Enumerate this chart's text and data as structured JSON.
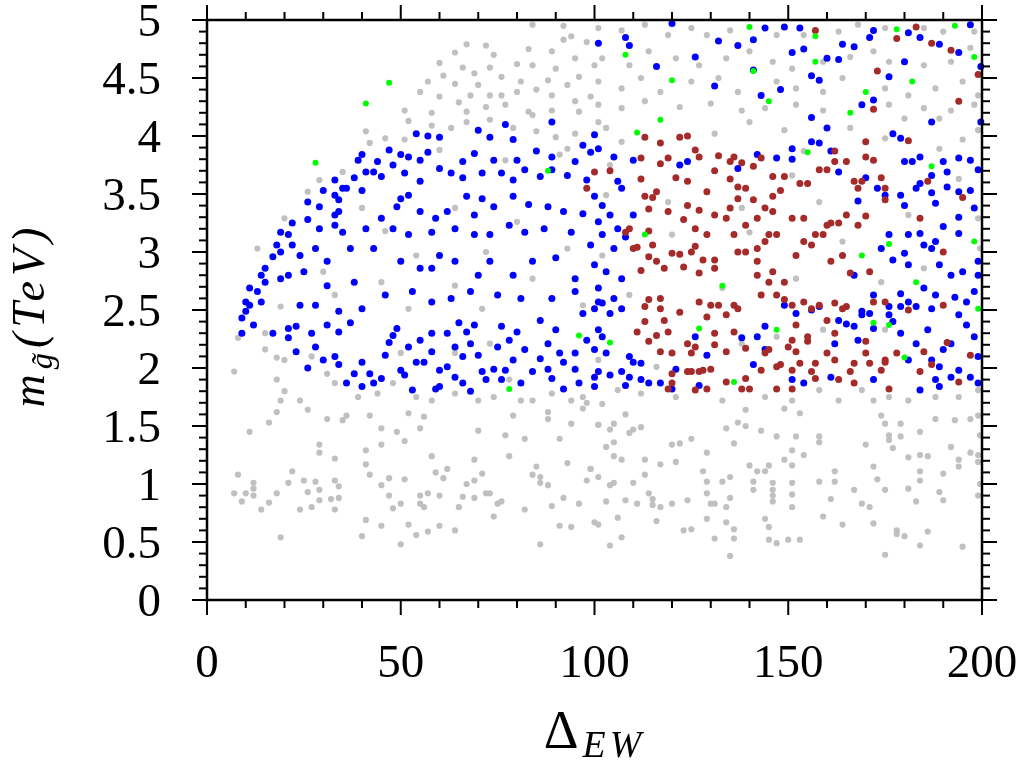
{
  "chart_data": {
    "type": "scatter",
    "xlabel": "Δ$_{EW}$",
    "ylabel": "m$_{g̃}$(TeV)",
    "marker": "circle",
    "xlim": [
      0,
      200
    ],
    "ylim": [
      0,
      5
    ],
    "xticks": [
      0,
      {
        "value": 10,
        "label": null
      },
      {
        "value": 20,
        "label": null
      },
      {
        "value": 30,
        "label": null
      },
      {
        "value": 40,
        "label": null
      },
      50,
      {
        "value": 60,
        "label": null
      },
      {
        "value": 70,
        "label": null
      },
      {
        "value": 80,
        "label": null
      },
      {
        "value": 90,
        "label": null
      },
      100,
      {
        "value": 110,
        "label": null
      },
      {
        "value": 120,
        "label": null
      },
      {
        "value": 130,
        "label": null
      },
      {
        "value": 140,
        "label": null
      },
      150,
      {
        "value": 160,
        "label": null
      },
      {
        "value": 170,
        "label": null
      },
      {
        "value": 180,
        "label": null
      },
      {
        "value": 190,
        "label": null
      },
      200
    ],
    "yticks": [
      0,
      {
        "value": 0.1,
        "label": null
      },
      {
        "value": 0.2,
        "label": null
      },
      {
        "value": 0.3,
        "label": null
      },
      {
        "value": 0.4,
        "label": null
      },
      0.5,
      {
        "value": 0.6,
        "label": null
      },
      {
        "value": 0.7,
        "label": null
      },
      {
        "value": 0.8,
        "label": null
      },
      {
        "value": 0.9,
        "label": null
      },
      1,
      {
        "value": 1.1,
        "label": null
      },
      {
        "value": 1.2,
        "label": null
      },
      {
        "value": 1.3,
        "label": null
      },
      {
        "value": 1.4,
        "label": null
      },
      1.5,
      {
        "value": 1.6,
        "label": null
      },
      {
        "value": 1.7,
        "label": null
      },
      {
        "value": 1.8,
        "label": null
      },
      {
        "value": 1.9,
        "label": null
      },
      2,
      {
        "value": 2.1,
        "label": null
      },
      {
        "value": 2.2,
        "label": null
      },
      {
        "value": 2.3,
        "label": null
      },
      {
        "value": 2.4,
        "label": null
      },
      2.5,
      {
        "value": 2.6,
        "label": null
      },
      {
        "value": 2.7,
        "label": null
      },
      {
        "value": 2.8,
        "label": null
      },
      {
        "value": 2.9,
        "label": null
      },
      3,
      {
        "value": 3.1,
        "label": null
      },
      {
        "value": 3.2,
        "label": null
      },
      {
        "value": 3.3,
        "label": null
      },
      {
        "value": 3.4,
        "label": null
      },
      3.5,
      {
        "value": 3.6,
        "label": null
      },
      {
        "value": 3.7,
        "label": null
      },
      {
        "value": 3.8,
        "label": null
      },
      {
        "value": 3.9,
        "label": null
      },
      4,
      {
        "value": 4.1,
        "label": null
      },
      {
        "value": 4.2,
        "label": null
      },
      {
        "value": 4.3,
        "label": null
      },
      {
        "value": 4.4,
        "label": null
      },
      4.5,
      {
        "value": 4.6,
        "label": null
      },
      {
        "value": 4.7,
        "label": null
      },
      {
        "value": 4.8,
        "label": null
      },
      {
        "value": 4.9,
        "label": null
      },
      5
    ],
    "series": [
      {
        "color": "#c0c0c0",
        "x": [
          84,
          92,
          94,
          92,
          98,
          67,
          72,
          64,
          74,
          83,
          89,
          95,
          100,
          60,
          66,
          73,
          80,
          84,
          90,
          96,
          61,
          69,
          76,
          81,
          88,
          93,
          57,
          64,
          70,
          73,
          80,
          85,
          89,
          95,
          99,
          55,
          60,
          65,
          68,
          76,
          51,
          58,
          67,
          72,
          77,
          83,
          89,
          96,
          52,
          58,
          67,
          73,
          84,
          41,
          42,
          46,
          51,
          63,
          79,
          85,
          90,
          95,
          93,
          35,
          29,
          26,
          20,
          13,
          60,
          77,
          91,
          101,
          30,
          46,
          54,
          72,
          93,
          45,
          64,
          84,
          33,
          52,
          71,
          97,
          80,
          64,
          40,
          101,
          107,
          113,
          119,
          125,
          129,
          135,
          147,
          154,
          163,
          168,
          175,
          185,
          190,
          198,
          102,
          109,
          114,
          121,
          127,
          134,
          140,
          146,
          151,
          159,
          166,
          172,
          176,
          185,
          192,
          197,
          101,
          107,
          112,
          117,
          125,
          132,
          137,
          147,
          152,
          159,
          164,
          175,
          181,
          188,
          195,
          199,
          101,
          107,
          113,
          122,
          130,
          138,
          144,
          152,
          159,
          176,
          185,
          192,
          198,
          140,
          180,
          189,
          103,
          131,
          149,
          166,
          175,
          195,
          199,
          107,
          154,
          189,
          104,
          151,
          194,
          103,
          119,
          138,
          158,
          181,
          199,
          102,
          120,
          140,
          164,
          185,
          199.5,
          109,
          133,
          152,
          174,
          101,
          106,
          112,
          116,
          121,
          133,
          138,
          144,
          151,
          158,
          163,
          169,
          176,
          181,
          188,
          194,
          199,
          147,
          175,
          159,
          15,
          19,
          31,
          33,
          39,
          44,
          48,
          54,
          58,
          64,
          70,
          74,
          81,
          84,
          89,
          94,
          97,
          20,
          27,
          50,
          64,
          78,
          73,
          7,
          8,
          15,
          18,
          18,
          20,
          19,
          24,
          26,
          18,
          16,
          11,
          29,
          29,
          31,
          33,
          36,
          35,
          41,
          41,
          42,
          42,
          45,
          45,
          45,
          47,
          47,
          49,
          51,
          51,
          50,
          48,
          52,
          55,
          56,
          52,
          54,
          55,
          55,
          56,
          57,
          57,
          58,
          59,
          60,
          60,
          61,
          62,
          64,
          65,
          66,
          67,
          69,
          69,
          69,
          70,
          71,
          72,
          73,
          74,
          75,
          76,
          77,
          78,
          79,
          82,
          82,
          84,
          85,
          86,
          86,
          86,
          88,
          88,
          88,
          89,
          91,
          91,
          92,
          93,
          94,
          94,
          96,
          98,
          99,
          100,
          101,
          97,
          98,
          7,
          8,
          9,
          10,
          12,
          12,
          12,
          14,
          16,
          18,
          19,
          21,
          22,
          24,
          25,
          26,
          27,
          28,
          29,
          29,
          32,
          33,
          33,
          34,
          34,
          41,
          40,
          45,
          50,
          102,
          108,
          101,
          105,
          104,
          110,
          112,
          109,
          103,
          105,
          105,
          107,
          101,
          104,
          105,
          99,
          103,
          108,
          111,
          115,
          115,
          117,
          101,
          106,
          107,
          104,
          110,
          113,
          113,
          114,
          116,
          117,
          120,
          120,
          121,
          122,
          124,
          123,
          125,
          125,
          128,
          129,
          129,
          129,
          129,
          130,
          131,
          131,
          133,
          134,
          134,
          134,
          135,
          135,
          135,
          136,
          136,
          136,
          137,
          139,
          139,
          140,
          141,
          141,
          142,
          143,
          144,
          145,
          144,
          145,
          145,
          146,
          146,
          146,
          146,
          147,
          147,
          149,
          149,
          150,
          151,
          151,
          151,
          151,
          151,
          152,
          153,
          153,
          154,
          158,
          158,
          158,
          159,
          161,
          162,
          162,
          164,
          167,
          169,
          170,
          171,
          172,
          172,
          172,
          173,
          174,
          175,
          175,
          175,
          176,
          176,
          177,
          178,
          178,
          179,
          180,
          179,
          181,
          181,
          184,
          184,
          183,
          184,
          184,
          184,
          186,
          186,
          188,
          189,
          190,
          190,
          192,
          193,
          194,
          194,
          195,
          197,
          197,
          199,
          199,
          199,
          199.5,
          199.5,
          199
        ],
        "values": [
          4.96,
          4.95,
          4.86,
          4.83,
          4.81,
          4.79,
          4.78,
          4.72,
          4.7,
          4.75,
          4.73,
          4.67,
          4.61,
          4.63,
          4.59,
          4.59,
          4.62,
          4.61,
          4.58,
          4.51,
          4.52,
          4.54,
          4.51,
          4.47,
          4.48,
          4.44,
          4.47,
          4.45,
          4.44,
          4.35,
          4.38,
          4.4,
          4.35,
          4.3,
          4.34,
          4.38,
          4.34,
          4.29,
          4.35,
          4.35,
          4.22,
          4.2,
          4.21,
          4.25,
          4.27,
          4.21,
          4.22,
          4.21,
          4.13,
          4.09,
          4.12,
          4.14,
          4.18,
          4.04,
          3.94,
          3.98,
          3.97,
          4.07,
          4.07,
          4.04,
          3.99,
          4.02,
          3.89,
          3.69,
          3.62,
          3.52,
          3.29,
          3.03,
          3.88,
          3.79,
          3.84,
          4.12,
          2.83,
          3.18,
          2.97,
          3.0,
          3.03,
          2.74,
          2.71,
          2.77,
          2.63,
          2.51,
          2.51,
          2.54,
          3.26,
          3.38,
          3.38,
          4.93,
          4.91,
          4.96,
          4.87,
          4.93,
          4.87,
          4.91,
          4.87,
          4.87,
          4.9,
          4.96,
          4.93,
          4.93,
          4.9,
          4.9,
          4.67,
          4.61,
          4.73,
          4.67,
          4.61,
          4.67,
          4.73,
          4.64,
          4.58,
          4.64,
          4.68,
          4.73,
          4.64,
          4.61,
          4.64,
          4.76,
          4.47,
          4.41,
          4.5,
          4.38,
          4.47,
          4.5,
          4.38,
          4.47,
          4.41,
          4.38,
          4.5,
          4.41,
          4.35,
          4.41,
          4.47,
          4.35,
          4.27,
          4.24,
          4.3,
          4.25,
          4.28,
          4.22,
          4.24,
          4.27,
          4.22,
          4.27,
          4.24,
          4.22,
          4.27,
          4.12,
          4.15,
          4.15,
          4.07,
          4.02,
          4.05,
          4.07,
          3.98,
          3.97,
          4.05,
          3.95,
          3.87,
          3.89,
          3.75,
          3.66,
          3.63,
          3.49,
          3.43,
          3.38,
          3.43,
          3.32,
          3.29,
          2.97,
          3.15,
          3.17,
          3.09,
          2.86,
          3.03,
          2.63,
          2.69,
          2.77,
          2.74,
          2.07,
          1.81,
          1.78,
          2.01,
          1.75,
          1.72,
          2.21,
          1.75,
          1.72,
          1.81,
          1.72,
          1.81,
          1.75,
          1.72,
          1.75,
          1.75,
          1.81,
          2.27,
          2.33,
          2.33,
          2.3,
          2.53,
          1.95,
          1.87,
          1.75,
          1.78,
          1.87,
          1.75,
          1.72,
          1.78,
          1.72,
          1.75,
          1.72,
          1.72,
          1.78,
          1.72,
          1.75,
          2.07,
          2.1,
          2.13,
          2.13,
          1.9,
          2.21,
          1.97,
          2.26,
          2.16,
          2.09,
          1.9,
          1.8,
          1.72,
          1.72,
          1.64,
          1.62,
          1.53,
          1.45,
          1.34,
          1.27,
          1.56,
          1.22,
          1.59,
          1.55,
          1.29,
          1.17,
          1.59,
          1.08,
          1.34,
          1.48,
          0.99,
          0.9,
          1.05,
          1.45,
          1.37,
          1.04,
          0.83,
          0.79,
          1.61,
          1.48,
          1.58,
          0.65,
          0.56,
          0.9,
          0.83,
          0.8,
          0.92,
          0.59,
          1.24,
          1.1,
          0.9,
          0.64,
          1.05,
          1.13,
          0.6,
          0.8,
          0.89,
          1.0,
          1.21,
          1.03,
          0.88,
          1.46,
          1.09,
          0.92,
          0.92,
          0.72,
          0.83,
          0.85,
          1.42,
          1.24,
          1.59,
          1.39,
          0.78,
          1.08,
          1.15,
          1.06,
          1.01,
          0.48,
          1.62,
          1.56,
          0.99,
          0.81,
          0.64,
          1.39,
          0.88,
          1.18,
          0.63,
          1.52,
          0.83,
          1.03,
          1.13,
          0.67,
          1.51,
          1.65,
          1.7,
          0.92,
          1.08,
          0.85,
          0.92,
          1.01,
          0.9,
          0.96,
          0.78,
          0.84,
          0.92,
          0.54,
          1.01,
          1.11,
          0.78,
          1.03,
          0.93,
          0.8,
          1.02,
          0.95,
          0.86,
          0.87,
          0.78,
          1.03,
          0.98,
          0.88,
          0.69,
          0.55,
          0.64,
          0.48,
          1.69,
          1.6,
          1.51,
          1.52,
          1.47,
          1.47,
          1.49,
          1.44,
          1.32,
          1.36,
          1.24,
          1.21,
          1.06,
          0.99,
          1.01,
          1.13,
          0.85,
          0.86,
          0.83,
          0.87,
          0.82,
          0.8,
          0.65,
          0.71,
          0.54,
          0.47,
          1.01,
          1.21,
          1.08,
          0.92,
          0.68,
          1.17,
          1.34,
          0.83,
          1.19,
          1.35,
          0.86,
          0.6,
          0.61,
          1.39,
          1.11,
          1.02,
          1.27,
          0.92,
          0.7,
          0.83,
          0.53,
          0.83,
          1.02,
          1.48,
          0.8,
          0.67,
          0.38,
          1.06,
          0.88,
          0.61,
          0.53,
          1.35,
          1.53,
          1.64,
          1.5,
          1.16,
          0.95,
          1.02,
          1.11,
          1.46,
          0.7,
          0.63,
          1.11,
          0.52,
          1.16,
          0.95,
          0.9,
          0.85,
          1.01,
          1.41,
          0.49,
          1.21,
          1.65,
          0.52,
          1.01,
          0.91,
          0.8,
          1.16,
          1.29,
          1.41,
          0.52,
          1.61,
          1.25,
          1.36,
          1.41,
          1.02,
          0.72,
          0.87,
          1.02,
          1.11,
          0.65,
          0.95,
          0.83,
          1.34,
          0.8,
          1.72,
          1.15,
          0.66,
          1.04,
          1.59,
          1.52,
          0.95,
          0.39,
          1.42,
          1.38,
          1.31,
          0.6,
          0.57,
          1.52,
          0.55,
          1.41,
          1.23,
          0.96,
          1.11,
          1.03,
          0.85,
          1.25,
          1.45,
          0.47,
          0.59,
          1.24,
          1.56,
          0.93,
          1.09,
          0.86,
          1.32,
          1.55,
          1.21,
          1.15,
          0.46,
          1.56,
          1.27,
          1.25,
          1.19,
          0.9,
          1.0,
          1.42,
          1.59
        ]
      },
      {
        "color": "#0000ff",
        "x": [
          77,
          89,
          101,
          54,
          57,
          60,
          70,
          79,
          73,
          97,
          101,
          99,
          39,
          40,
          44,
          47,
          50,
          52,
          57,
          55,
          66,
          69,
          74,
          80,
          85,
          89,
          95,
          89,
          93,
          98,
          33,
          35,
          38,
          41,
          43,
          45,
          48,
          51,
          55,
          60,
          63,
          66,
          71,
          76,
          79,
          82,
          86,
          26,
          30,
          33,
          36,
          40,
          29,
          34,
          34,
          33,
          50,
          52,
          49,
          55,
          59,
          62,
          67,
          69,
          71,
          74,
          79,
          83,
          88,
          92,
          97,
          22,
          26,
          29,
          33,
          35,
          19,
          21,
          18,
          19,
          22,
          24,
          28,
          31,
          17,
          15,
          14,
          11,
          13,
          15,
          19,
          21,
          25,
          10,
          14,
          10,
          41,
          45,
          48,
          52,
          58,
          60,
          64,
          69,
          73,
          78,
          82,
          87,
          94,
          99,
          37,
          43,
          50,
          55,
          58,
          64,
          70,
          73,
          79,
          84,
          90,
          95,
          38,
          46,
          53,
          58,
          63,
          68,
          75,
          81,
          89,
          95,
          101,
          31,
          28,
          24,
          34,
          40,
          9,
          9,
          11,
          12,
          17,
          21,
          21,
          23,
          23,
          26,
          27,
          28,
          30,
          31,
          33,
          34,
          34,
          36,
          37,
          38,
          40,
          40,
          42,
          43,
          45,
          46,
          47,
          48,
          49,
          50,
          51,
          52,
          53,
          54,
          55,
          56,
          58,
          58,
          59,
          60,
          60,
          62,
          62,
          64,
          64,
          65,
          66,
          66,
          67,
          68,
          68,
          69,
          70,
          71,
          72,
          74,
          75,
          76,
          76,
          77,
          78,
          79,
          80,
          81,
          82,
          84,
          86,
          86,
          88,
          88,
          89,
          90,
          91,
          92,
          92,
          95,
          95,
          96,
          97,
          98,
          100,
          100,
          108,
          109,
          116,
          120,
          126,
          131,
          132,
          137,
          141,
          144,
          148,
          149,
          151,
          153,
          154,
          156,
          158,
          160,
          163,
          164,
          167,
          172,
          171,
          176,
          180,
          181,
          184,
          189,
          194,
          197,
          199.7,
          199.7,
          169,
          172,
          156,
          160,
          141,
          143,
          187,
          100,
          105,
          110,
          100,
          102,
          106,
          107,
          101,
          104,
          106,
          102,
          105,
          108,
          110,
          100,
          103,
          107,
          101,
          105,
          100,
          122,
          124,
          137,
          147,
          151,
          156,
          158,
          163,
          168,
          170,
          173,
          177,
          179,
          180,
          182,
          184,
          187,
          190,
          191,
          194,
          197,
          199,
          191,
          194,
          197,
          184,
          183,
          179,
          175,
          180,
          188,
          198,
          194,
          187,
          194,
          190,
          188,
          184,
          181,
          176,
          174,
          177,
          180,
          181,
          185,
          187,
          189,
          192,
          195,
          199,
          199,
          198,
          196,
          193,
          188,
          185,
          181,
          179,
          176,
          172,
          169,
          167,
          161,
          151,
          142,
          102,
          104,
          101,
          102,
          100,
          103,
          101,
          104,
          107,
          107,
          109,
          110,
          112,
          112,
          109,
          108,
          114,
          117,
          120,
          121,
          127,
          126,
          129,
          138,
          141,
          142,
          144,
          144,
          149,
          151,
          152,
          154,
          156,
          158,
          161,
          162,
          163,
          165,
          167,
          168,
          169,
          171,
          172,
          172,
          176,
          177,
          179,
          179,
          181,
          183,
          184,
          186,
          187,
          188,
          189,
          189,
          190,
          192,
          194,
          194,
          196,
          197,
          198,
          199,
          199,
          187,
          183,
          192
        ],
        "values": [
          4.1,
          4.12,
          4.8,
          4.02,
          4.0,
          3.99,
          4.05,
          3.97,
          3.99,
          3.92,
          3.89,
          3.86,
          3.79,
          3.84,
          3.78,
          3.88,
          3.84,
          3.82,
          3.86,
          3.79,
          3.78,
          3.85,
          3.79,
          3.79,
          3.87,
          3.82,
          3.78,
          3.71,
          3.66,
          3.62,
          3.62,
          3.55,
          3.64,
          3.69,
          3.69,
          3.65,
          3.75,
          3.68,
          3.61,
          3.72,
          3.68,
          3.64,
          3.68,
          3.68,
          3.62,
          3.71,
          3.65,
          3.43,
          3.53,
          3.49,
          3.55,
          3.53,
          3.39,
          3.45,
          3.35,
          3.32,
          3.46,
          3.49,
          3.39,
          3.35,
          3.29,
          3.35,
          3.48,
          3.32,
          3.46,
          3.39,
          3.48,
          3.41,
          3.39,
          3.35,
          3.33,
          3.25,
          3.28,
          3.2,
          3.23,
          3.17,
          3.17,
          3.15,
          3.06,
          3.0,
          3.06,
          2.97,
          3.03,
          2.92,
          2.96,
          2.86,
          2.8,
          2.69,
          2.66,
          2.74,
          2.77,
          2.8,
          2.83,
          2.57,
          2.57,
          2.49,
          3.2,
          3.29,
          3.2,
          3.15,
          3.17,
          2.97,
          3.2,
          3.15,
          3.15,
          3.23,
          3.17,
          3.2,
          3.17,
          3.06,
          3.03,
          3.03,
          2.92,
          2.86,
          2.86,
          2.92,
          2.8,
          2.92,
          2.8,
          2.92,
          2.95,
          2.77,
          2.74,
          2.63,
          2.66,
          2.57,
          2.6,
          2.66,
          2.63,
          2.6,
          2.6,
          2.66,
          2.57,
          2.71,
          2.54,
          2.54,
          2.49,
          2.51,
          2.3,
          2.43,
          2.54,
          2.37,
          2.3,
          2.34,
          2.26,
          2.36,
          2.14,
          2.0,
          2.3,
          2.18,
          2.07,
          2.37,
          2.1,
          2.31,
          2.03,
          1.87,
          2.39,
          1.95,
          1.84,
          2.05,
          1.95,
          1.87,
          1.91,
          2.11,
          2.22,
          2.28,
          2.34,
          1.98,
          1.94,
          2.18,
          1.81,
          2.05,
          2.24,
          2.05,
          2.3,
          2.14,
          1.82,
          1.98,
          1.84,
          2.01,
          2.3,
          2.18,
          1.92,
          2.39,
          2.1,
          1.87,
          2.31,
          1.8,
          2.21,
          2.37,
          2.11,
          1.97,
          1.9,
          1.99,
          2.18,
          2.36,
          1.9,
          1.98,
          2.24,
          2.07,
          2.31,
          1.87,
          2.16,
          1.97,
          2.41,
          2.08,
          2.21,
          1.99,
          1.91,
          2.33,
          2.13,
          1.82,
          2.05,
          1.99,
          2.13,
          1.87,
          2.47,
          2.24,
          1.92,
          1.84,
          4.85,
          4.78,
          4.6,
          4.97,
          4.68,
          4.43,
          4.82,
          4.78,
          4.83,
          4.93,
          4.4,
          4.94,
          4.72,
          4.93,
          4.75,
          4.52,
          4.48,
          4.67,
          4.66,
          4.79,
          4.77,
          4.91,
          4.85,
          4.51,
          4.64,
          4.89,
          4.85,
          4.79,
          4.72,
          4.96,
          4.6,
          4.12,
          4.27,
          4.31,
          4.16,
          4.07,
          4.57,
          4.35,
          4.12,
          4.01,
          3.82,
          3.79,
          3.48,
          3.4,
          3.61,
          3.55,
          3.26,
          3.32,
          3.2,
          3.15,
          3.03,
          3.13,
          3.32,
          2.89,
          2.83,
          2.77,
          2.69,
          2.6,
          2.51,
          3.75,
          3.78,
          3.72,
          3.81,
          3.8,
          3.95,
          3.94,
          3.69,
          3.44,
          3.64,
          3.55,
          4.02,
          3.98,
          3.78,
          3.78,
          3.82,
          3.66,
          3.78,
          3.69,
          3.81,
          3.79,
          3.71,
          3.56,
          3.52,
          3.53,
          3.59,
          3.55,
          3.49,
          3.49,
          3.4,
          3.42,
          3.38,
          3.3,
          3.51,
          3.16,
          3.22,
          3.09,
          3.16,
          3.15,
          3.15,
          3.03,
          2.93,
          2.99,
          2.89,
          3.06,
          3.03,
          2.89,
          2.8,
          2.83,
          2.92,
          2.8,
          2.66,
          2.57,
          2.61,
          2.63,
          2.69,
          2.57,
          2.64,
          2.53,
          2.63,
          2.49,
          2.8,
          3.87,
          3.89,
          3.84,
          2.56,
          2.47,
          2.33,
          2.27,
          2.16,
          2.13,
          1.97,
          1.94,
          1.97,
          2.51,
          2.1,
          2.05,
          2.04,
          1.9,
          1.92,
          1.85,
          1.87,
          1.87,
          1.82,
          1.99,
          1.85,
          2.27,
          2.11,
          2.26,
          2.03,
          2.27,
          2.36,
          2.16,
          2.54,
          1.9,
          2.47,
          1.87,
          2.5,
          2.53,
          1.92,
          2.21,
          2.41,
          2.38,
          2.36,
          2.24,
          2.46,
          2.47,
          1.9,
          2.34,
          2.46,
          2.4,
          2.53,
          2.3,
          2.07,
          2.21,
          1.81,
          2.33,
          2.07,
          1.9,
          2.01,
          1.84,
          2.16,
          2.21,
          2.46,
          1.98,
          2.37,
          1.92,
          2.27,
          1.87,
          2.1,
          2.51,
          2.53,
          1.92
        ]
      },
      {
        "color": "#a52a2a",
        "x": [
          157,
          178,
          183,
          187,
          192,
          173,
          199,
          194,
          172,
          181,
          170,
          100,
          98,
          113,
          117,
          122,
          124,
          126,
          104,
          112,
          112,
          117,
          119,
          121,
          124,
          127,
          132,
          135,
          136,
          138,
          131,
          135,
          141,
          143,
          146,
          149,
          146,
          153,
          155,
          158,
          160,
          162,
          162,
          165,
          170,
          172,
          174,
          169,
          168,
          167,
          195,
          186,
          184,
          113,
          116,
          115,
          119,
          114,
          109,
          114,
          115,
          114,
          112,
          111,
          116,
          118,
          120,
          122,
          123,
          123,
          124,
          127,
          126,
          129,
          129,
          131,
          135,
          134,
          137,
          139,
          137,
          141,
          142,
          144,
          146,
          148,
          151,
          154,
          157,
          159,
          161,
          160,
          163,
          165,
          168,
          170,
          175,
          175,
          136,
          139,
          137,
          139,
          142,
          142,
          144,
          145,
          147,
          142,
          146,
          145,
          149,
          152,
          154,
          156,
          161,
          164,
          166,
          128,
          126,
          125,
          131,
          131,
          127,
          127,
          130,
          136,
          137,
          143,
          147,
          149,
          151,
          154,
          158,
          162,
          164,
          172,
          175,
          156,
          117,
          117,
          114,
          113,
          110,
          108,
          171,
          190,
          132,
          113,
          111,
          118,
          122,
          119,
          116,
          114,
          117,
          120,
          124,
          126,
          125,
          125,
          124,
          127,
          120,
          120,
          119,
          126,
          129,
          129,
          131,
          131,
          128,
          130,
          134,
          136,
          134,
          134,
          138,
          139,
          139,
          140,
          143,
          144,
          145,
          147,
          147,
          148,
          151,
          151,
          152,
          153,
          155,
          155,
          157,
          157,
          156,
          152,
          160,
          162,
          160,
          162,
          163,
          167,
          167,
          166,
          170,
          170,
          171,
          174,
          175,
          176,
          175,
          178,
          181,
          190,
          191,
          194,
          197,
          185,
          184,
          187,
          165,
          151,
          150
        ],
        "values": [
          4.91,
          4.84,
          4.94,
          4.8,
          4.74,
          4.56,
          4.53,
          4.3,
          4.23,
          3.96,
          3.95,
          3.69,
          3.55,
          3.99,
          3.94,
          3.99,
          4.0,
          3.88,
          3.7,
          3.81,
          3.63,
          3.76,
          3.81,
          3.64,
          3.61,
          3.82,
          3.83,
          3.78,
          3.82,
          3.77,
          3.7,
          3.63,
          3.74,
          3.81,
          3.65,
          3.65,
          3.48,
          3.59,
          3.59,
          3.71,
          3.71,
          3.87,
          3.78,
          3.78,
          3.82,
          3.79,
          3.64,
          3.61,
          3.55,
          3.61,
          3.47,
          3.61,
          3.29,
          3.48,
          3.52,
          3.47,
          3.35,
          3.37,
          3.2,
          3.18,
          3.06,
          2.96,
          2.84,
          3.04,
          2.92,
          2.86,
          2.99,
          2.98,
          2.87,
          3.28,
          3.4,
          3.36,
          3.2,
          3.15,
          3.52,
          3.32,
          3.38,
          3.29,
          3.56,
          3.55,
          3.46,
          3.45,
          3.29,
          3.38,
          3.35,
          3.53,
          3.29,
          3.29,
          3.15,
          3.15,
          3.25,
          3.23,
          3.25,
          3.32,
          3.23,
          3.31,
          3.55,
          3.45,
          3.15,
          3.23,
          3.0,
          3.0,
          3.03,
          2.92,
          3.09,
          3.15,
          3.15,
          2.8,
          2.83,
          2.74,
          2.74,
          2.97,
          3.09,
          3.06,
          2.92,
          2.97,
          2.82,
          2.93,
          3.05,
          3.0,
          2.93,
          2.86,
          2.82,
          2.57,
          2.54,
          2.54,
          2.51,
          2.63,
          2.63,
          2.59,
          2.54,
          2.57,
          2.54,
          2.56,
          2.51,
          2.57,
          2.57,
          2.51,
          2.6,
          2.51,
          2.59,
          2.53,
          3.03,
          3.17,
          2.83,
          3.0,
          2.54,
          2.4,
          2.31,
          2.41,
          2.48,
          2.31,
          2.28,
          2.23,
          2.14,
          2.13,
          2.21,
          2.18,
          2.13,
          1.97,
          1.97,
          1.97,
          1.95,
          1.87,
          1.82,
          1.81,
          1.82,
          2.44,
          2.3,
          2.2,
          1.98,
          1.99,
          2.46,
          2.31,
          2.14,
          1.88,
          1.82,
          2.17,
          1.91,
          1.82,
          1.98,
          2.13,
          2.16,
          2.01,
          1.82,
          2.03,
          1.98,
          1.82,
          2.14,
          2.04,
          2.23,
          2.27,
          1.91,
          2.04,
          1.97,
          2.37,
          2.41,
          2.3,
          2.13,
          2.07,
          1.9,
          1.87,
          2.04,
          1.97,
          2.23,
          2.13,
          2.04,
          1.98,
          2.05,
          1.82,
          2.07,
          2.13,
          2.5,
          2.54,
          2.22,
          1.88,
          2.11,
          2.14,
          1.97,
          2.03,
          2.53,
          2.24,
          2.18
        ]
      },
      {
        "color": "#00ff00",
        "x": [
          28,
          41,
          47,
          88,
          78,
          96,
          140,
          108,
          157,
          178,
          193,
          198,
          157,
          120,
          141,
          182,
          170,
          145,
          166,
          117,
          111,
          155,
          187,
          113,
          176,
          169,
          198,
          183,
          133,
          199,
          104,
          147,
          172,
          176,
          180,
          127,
          136
        ],
        "values": [
          3.77,
          4.28,
          4.46,
          3.7,
          1.82,
          2.28,
          4.94,
          4.7,
          4.86,
          4.92,
          4.95,
          4.68,
          4.64,
          4.48,
          4.56,
          4.47,
          4.38,
          4.3,
          4.2,
          4.14,
          4.03,
          3.86,
          3.74,
          3.15,
          3.07,
          2.97,
          3.09,
          2.74,
          2.71,
          2.51,
          2.22,
          2.33,
          2.39,
          2.37,
          2.09,
          2.34,
          1.88
        ]
      }
    ]
  }
}
